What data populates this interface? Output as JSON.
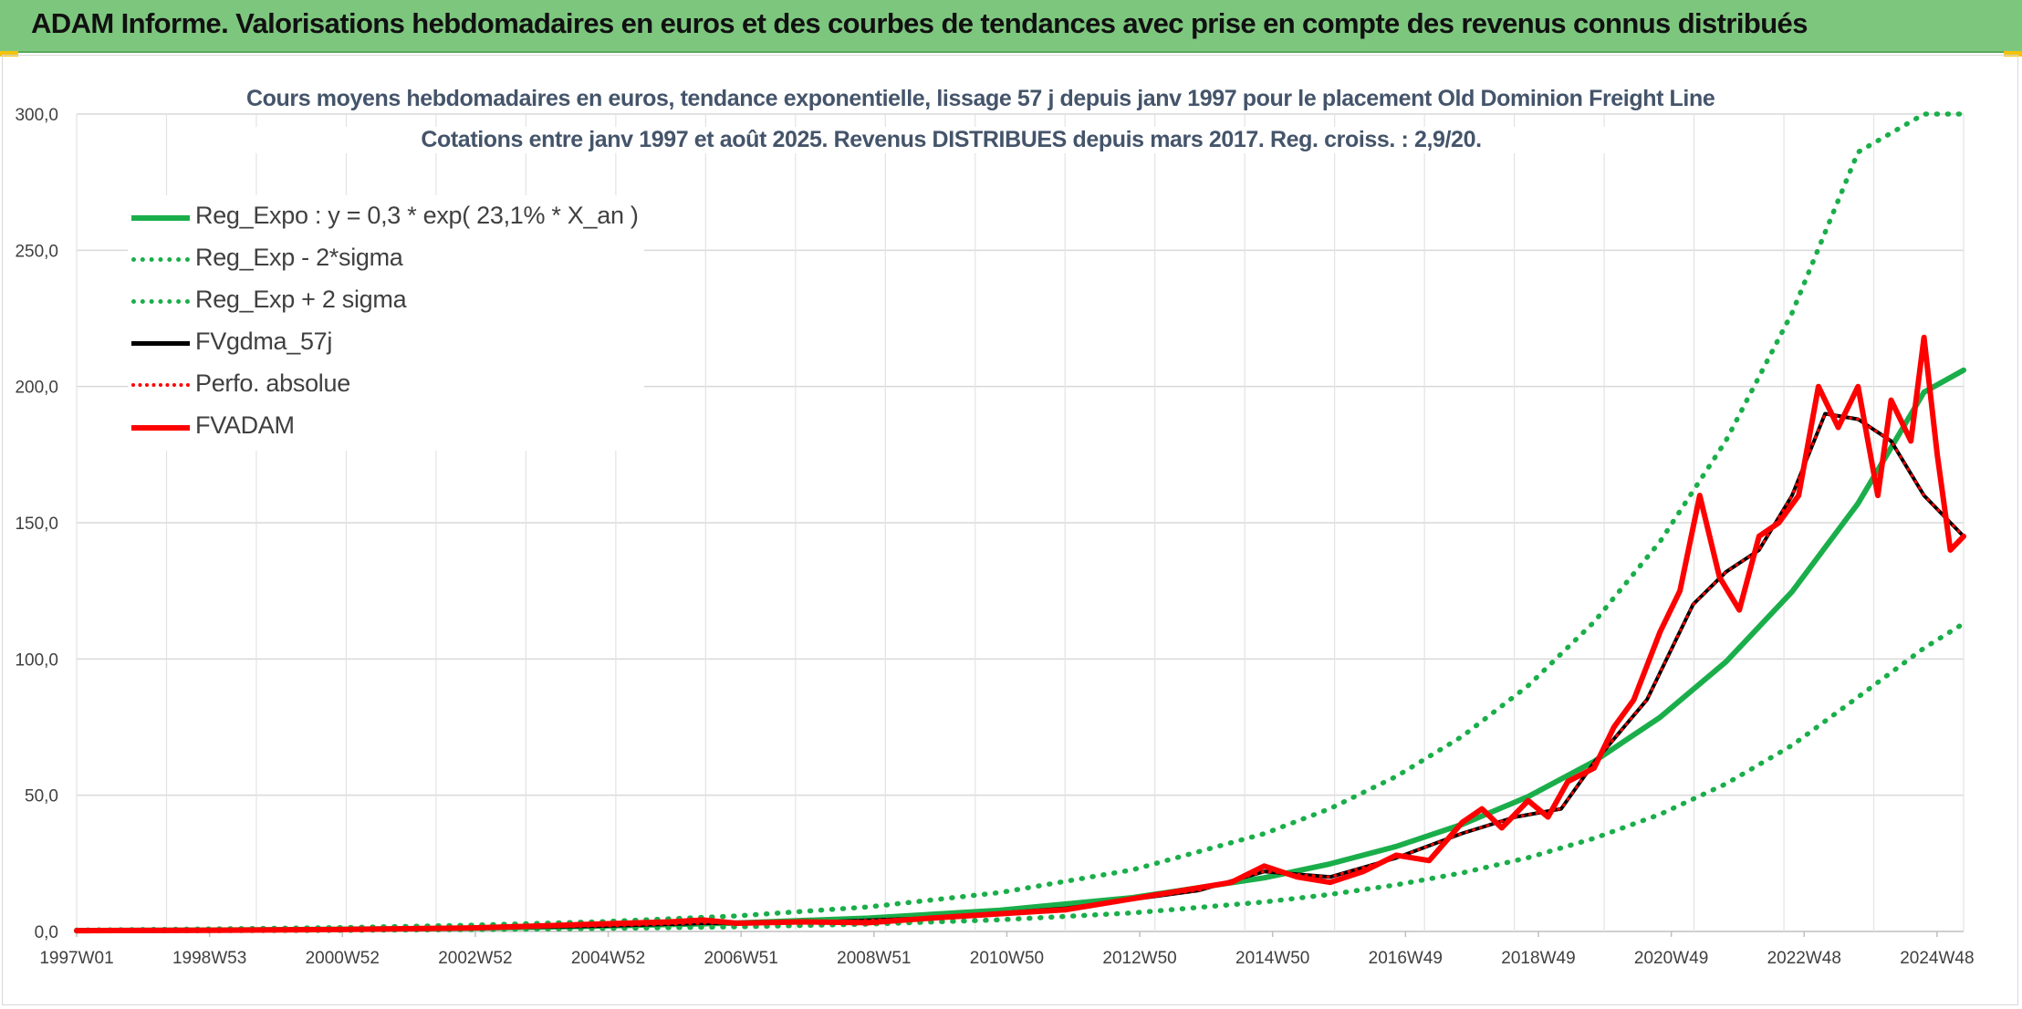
{
  "banner": {
    "title": "ADAM Informe. Valorisations hebdomadaires en euros et des courbes de tendances avec prise en compte des revenus connus distribués"
  },
  "colors": {
    "banner": "#7dc67e",
    "reg_expo": "#1aae4a",
    "sigma_bands": "#1aae4a",
    "fvgdma": "#000000",
    "fvadam": "#ff0000",
    "perfo": "#ff0000",
    "title_text": "#44546a"
  },
  "chart_data": {
    "type": "line",
    "title": "Cours moyens hebdomadaires en euros, tendance exponentielle, lissage 57 j depuis janv 1997 pour le placement Old Dominion Freight Line",
    "subtitle": "Cotations entre janv 1997 et août 2025. Revenus DISTRIBUES depuis mars 2017. Reg. croiss. : 2,9/20.",
    "xlabel": "",
    "ylabel": "",
    "ylim": [
      0,
      300
    ],
    "y_ticks": [
      "0,0",
      "50,0",
      "100,0",
      "150,0",
      "200,0",
      "250,0",
      "300,0"
    ],
    "x_ticks": [
      "1997W01",
      "1998W53",
      "2000W52",
      "2002W52",
      "2004W52",
      "2006W51",
      "2008W51",
      "2010W50",
      "2012W50",
      "2014W50",
      "2016W49",
      "2018W49",
      "2020W49",
      "2022W48",
      "2024W48"
    ],
    "x_range_years": [
      1997.0,
      2025.6
    ],
    "grid": true,
    "legend_position": "top-left",
    "series": [
      {
        "name": "Reg_Expo : y = 0,3 * exp( 23,1% *  X_an )",
        "style": "solid-thick",
        "color": "#1aae4a",
        "x": [
          1997,
          1999,
          2001,
          2003,
          2005,
          2007,
          2009,
          2011,
          2013,
          2015,
          2016,
          2017,
          2018,
          2019,
          2020,
          2021,
          2022,
          2023,
          2024,
          2025,
          2025.6
        ],
        "y": [
          0.3,
          0.5,
          0.8,
          1.2,
          2.0,
          3.1,
          4.9,
          7.8,
          12.4,
          19.7,
          24.8,
          31.2,
          39.3,
          49.5,
          62.4,
          78.6,
          99.0,
          124.7,
          157.1,
          197.9,
          206.0
        ]
      },
      {
        "name": "Reg_Exp - 2*sigma",
        "style": "dotted",
        "color": "#1aae4a",
        "x": [
          1997,
          1999,
          2001,
          2003,
          2005,
          2007,
          2009,
          2011,
          2013,
          2015,
          2016,
          2017,
          2018,
          2019,
          2020,
          2021,
          2022,
          2023,
          2024,
          2025,
          2025.6
        ],
        "y": [
          0.2,
          0.3,
          0.4,
          0.7,
          1.1,
          1.7,
          2.7,
          4.3,
          6.8,
          10.8,
          13.6,
          17.1,
          21.5,
          27.1,
          34.2,
          43.0,
          54.2,
          68.3,
          86.0,
          104.0,
          113.0
        ]
      },
      {
        "name": "Reg_Exp + 2 sigma",
        "style": "dotted",
        "color": "#1aae4a",
        "x": [
          1997,
          1999,
          2001,
          2003,
          2005,
          2007,
          2009,
          2011,
          2013,
          2015,
          2016,
          2017,
          2018,
          2019,
          2020,
          2021,
          2022,
          2023,
          2024,
          2025,
          2025.6
        ],
        "y": [
          0.5,
          0.9,
          1.4,
          2.3,
          3.6,
          5.7,
          9.0,
          14.3,
          22.6,
          35.9,
          45.1,
          56.9,
          71.6,
          90.2,
          113.6,
          143.1,
          180.2,
          227.0,
          286.0,
          300.0,
          300.0
        ]
      },
      {
        "name": "FVgdma_57j",
        "style": "solid",
        "color": "#000000",
        "x": [
          1997,
          2000,
          2003,
          2005,
          2006.5,
          2008,
          2010,
          2012,
          2014,
          2015,
          2016,
          2017,
          2018,
          2018.8,
          2019.5,
          2020,
          2020.8,
          2021.5,
          2022,
          2022.5,
          2023,
          2023.5,
          2024,
          2024.5,
          2025,
          2025.6
        ],
        "y": [
          0.3,
          0.6,
          1.2,
          2.0,
          3.0,
          3.2,
          5.0,
          8.5,
          15.0,
          22.0,
          20.0,
          27.0,
          36.0,
          42.0,
          45.0,
          62.0,
          85.0,
          120.0,
          132.0,
          140.0,
          160.0,
          190.0,
          188.0,
          180.0,
          160.0,
          145.0
        ]
      },
      {
        "name": "Perfo. absolue",
        "style": "dotted",
        "color": "#ff0000",
        "x": [
          1997,
          2000,
          2003,
          2005,
          2006.5,
          2008,
          2010,
          2012,
          2014,
          2015,
          2016,
          2017,
          2018,
          2018.8,
          2019.5,
          2020,
          2020.8,
          2021.5,
          2022,
          2022.5,
          2023,
          2023.5,
          2024,
          2024.5,
          2025,
          2025.6
        ],
        "y": [
          0.3,
          0.6,
          1.2,
          2.0,
          3.0,
          3.2,
          5.0,
          8.5,
          15.0,
          22.0,
          20.0,
          27.0,
          36.0,
          42.0,
          45.0,
          62.0,
          85.0,
          120.0,
          132.0,
          140.0,
          160.0,
          190.0,
          188.0,
          180.0,
          160.0,
          145.0
        ]
      },
      {
        "name": "FVADAM",
        "style": "solid-thick",
        "color": "#ff0000",
        "x": [
          1997,
          1999,
          2001,
          2003,
          2004,
          2005,
          2006,
          2006.5,
          2007,
          2008,
          2009,
          2010,
          2011,
          2012,
          2013,
          2014,
          2014.5,
          2015,
          2015.5,
          2016,
          2016.5,
          2017,
          2017.5,
          2018,
          2018.3,
          2018.6,
          2019,
          2019.3,
          2019.6,
          2020,
          2020.3,
          2020.6,
          2021,
          2021.3,
          2021.6,
          2021.9,
          2022.2,
          2022.5,
          2022.8,
          2023.1,
          2023.4,
          2023.7,
          2024.0,
          2024.3,
          2024.5,
          2024.8,
          2025.0,
          2025.2,
          2025.4,
          2025.6
        ],
        "y": [
          0.3,
          0.4,
          0.7,
          1.3,
          2.0,
          2.8,
          3.5,
          4.2,
          3.0,
          3.5,
          3.2,
          5.0,
          6.5,
          8.0,
          12.0,
          16.0,
          18.0,
          24.0,
          20.0,
          18.0,
          22.0,
          28.0,
          26.0,
          40.0,
          45.0,
          38.0,
          48.0,
          42.0,
          55.0,
          60.0,
          75.0,
          85.0,
          110.0,
          125.0,
          160.0,
          130.0,
          118.0,
          145.0,
          150.0,
          160.0,
          200.0,
          185.0,
          200.0,
          160.0,
          195.0,
          180.0,
          218.0,
          175.0,
          140.0,
          145.0
        ]
      }
    ]
  }
}
